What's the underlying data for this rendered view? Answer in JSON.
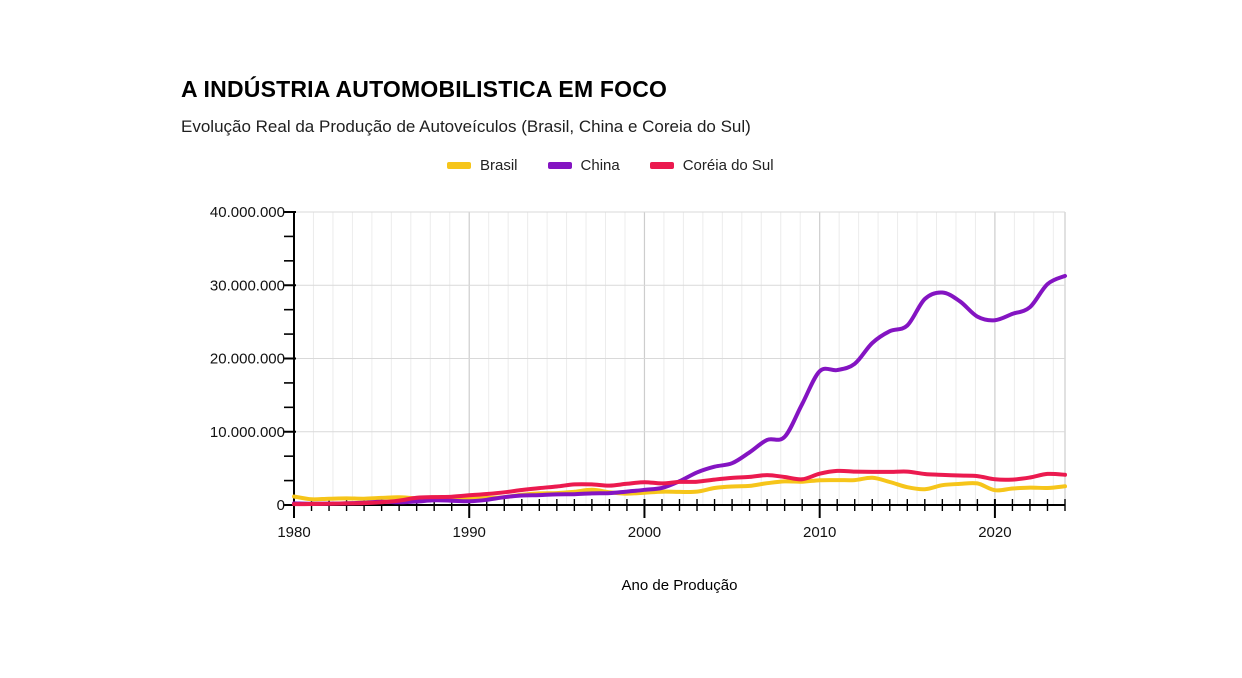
{
  "header": {
    "title": "A INDÚSTRIA AUTOMOBILISTICA EM FOCO",
    "subtitle": "Evolução Real da Produção de Autoveículos (Brasil, China e Coreia do Sul)"
  },
  "chart_data": {
    "type": "line",
    "smooth": true,
    "grid": true,
    "legend_position": "top",
    "xlabel": "Ano de Produção",
    "ylabel": "",
    "xlim": [
      1980,
      2024
    ],
    "ylim": [
      0,
      40000000
    ],
    "yticks": [
      0,
      10000000,
      20000000,
      30000000,
      40000000
    ],
    "ytick_labels": [
      "0",
      "10.000.000",
      "20.000.000",
      "30.000.000",
      "40.000.000"
    ],
    "xticks": [
      1980,
      1990,
      2000,
      2010,
      2020
    ],
    "xtick_labels": [
      "1980",
      "1990",
      "2000",
      "2010",
      "2020"
    ],
    "x": [
      1980,
      1981,
      1982,
      1983,
      1984,
      1985,
      1986,
      1987,
      1988,
      1989,
      1990,
      1991,
      1992,
      1993,
      1994,
      1995,
      1996,
      1997,
      1998,
      1999,
      2000,
      2001,
      2002,
      2003,
      2004,
      2005,
      2006,
      2007,
      2008,
      2009,
      2010,
      2011,
      2012,
      2013,
      2014,
      2015,
      2016,
      2017,
      2018,
      2019,
      2020,
      2021,
      2022,
      2023,
      2024
    ],
    "series": [
      {
        "name": "Brasil",
        "color": "#F6C51A",
        "values": [
          1165000,
          781000,
          859000,
          896000,
          865000,
          967000,
          1056000,
          920000,
          1069000,
          1013000,
          914000,
          960000,
          1074000,
          1391000,
          1581000,
          1629000,
          1804000,
          2070000,
          1750000,
          1550000,
          1682000,
          1818000,
          1792000,
          1828000,
          2317000,
          2531000,
          2612000,
          2977000,
          3216000,
          3183000,
          3382000,
          3406000,
          3403000,
          3712000,
          3146000,
          2429000,
          2156000,
          2700000,
          2880000,
          2945000,
          2014000,
          2248000,
          2370000,
          2324000,
          2550000
        ]
      },
      {
        "name": "China",
        "color": "#8414C2",
        "values": [
          222000,
          176000,
          196000,
          240000,
          316000,
          437000,
          370000,
          472000,
          645000,
          586000,
          509000,
          709000,
          1062000,
          1297000,
          1353000,
          1453000,
          1475000,
          1580000,
          1628000,
          1832000,
          2069000,
          2334000,
          3251000,
          4444000,
          5235000,
          5708000,
          7189000,
          8882000,
          9299000,
          13791000,
          18265000,
          18419000,
          19272000,
          22117000,
          23723000,
          24503000,
          28119000,
          29015000,
          27809000,
          25721000,
          25225000,
          26082000,
          27021000,
          30161000,
          31282000
        ]
      },
      {
        "name": "Coréia do Sul",
        "color": "#EB1A4F",
        "values": [
          123000,
          134000,
          163000,
          221000,
          265000,
          378000,
          602000,
          980000,
          1084000,
          1129000,
          1322000,
          1498000,
          1730000,
          2050000,
          2312000,
          2526000,
          2813000,
          2818000,
          2650000,
          2900000,
          3115000,
          2946000,
          3148000,
          3178000,
          3469000,
          3699000,
          3840000,
          4086000,
          3827000,
          3513000,
          4272000,
          4657000,
          4562000,
          4521000,
          4525000,
          4556000,
          4229000,
          4115000,
          4029000,
          3951000,
          3507000,
          3462000,
          3757000,
          4244000,
          4128000
        ]
      }
    ]
  },
  "colors": {
    "axis": "#000000",
    "grid_minor": "#ececec",
    "grid_major_vertical": "#cdcdcd",
    "grid_horizontal": "#d9d9d9",
    "tick_label": "#111111"
  }
}
